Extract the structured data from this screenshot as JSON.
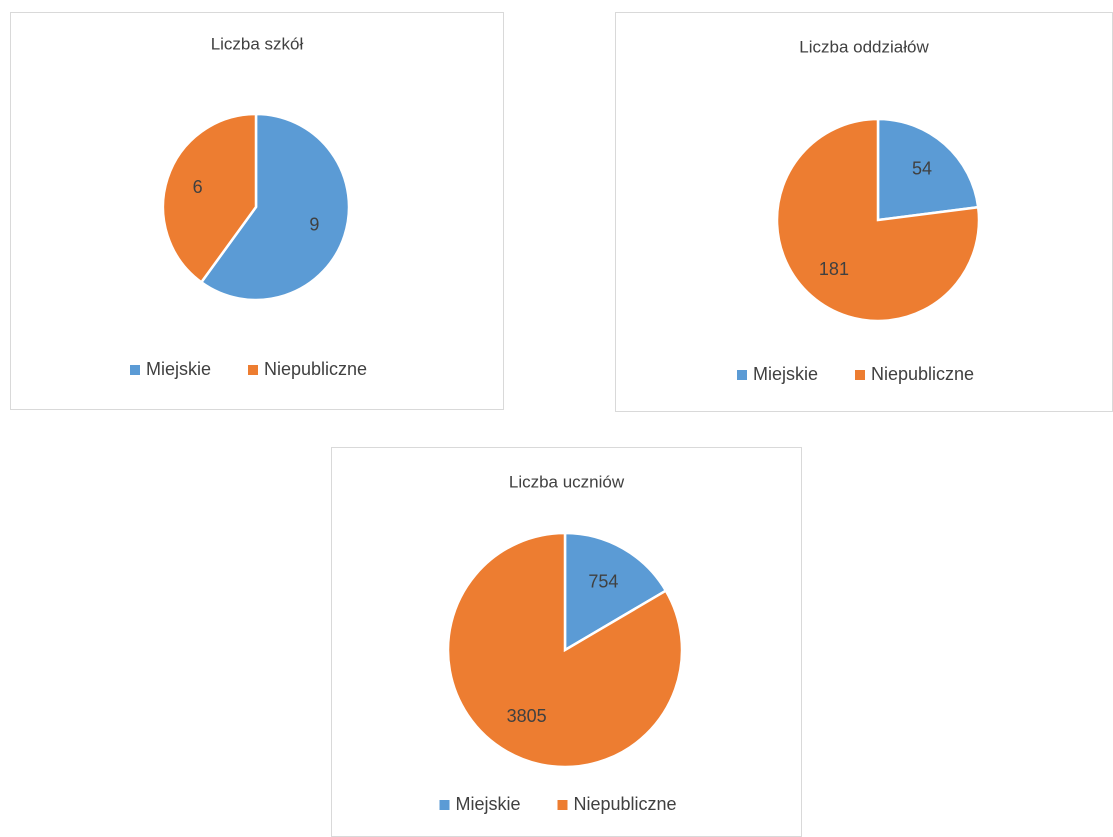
{
  "chart_data": [
    {
      "type": "pie",
      "title": "Liczba szkół",
      "categories": [
        "Miejskie",
        "Niepubliczne"
      ],
      "values": [
        9,
        6
      ],
      "colors": [
        "#5b9bd5",
        "#ed7d31"
      ],
      "legend": "bottom"
    },
    {
      "type": "pie",
      "title": "Liczba oddziałów",
      "categories": [
        "Miejskie",
        "Niepubliczne"
      ],
      "values": [
        54,
        181
      ],
      "colors": [
        "#5b9bd5",
        "#ed7d31"
      ],
      "legend": "bottom"
    },
    {
      "type": "pie",
      "title": "Liczba uczniów",
      "categories": [
        "Miejskie",
        "Niepubliczne"
      ],
      "values": [
        754,
        3805
      ],
      "colors": [
        "#5b9bd5",
        "#ed7d31"
      ],
      "legend": "bottom"
    }
  ]
}
